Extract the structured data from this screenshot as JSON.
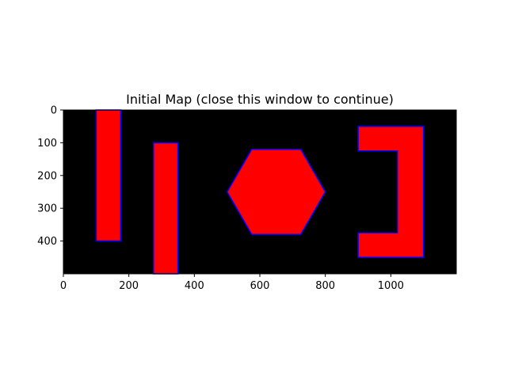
{
  "window": {
    "title": "Initial Map (close this window to continue)"
  },
  "chart_data": {
    "type": "map",
    "title": "Initial Map (close this window to continue)",
    "xlabel": "",
    "ylabel": "",
    "xlim": [
      0,
      1200
    ],
    "ylim": [
      500,
      0
    ],
    "x_ticks": [
      0,
      200,
      400,
      600,
      800,
      1000
    ],
    "y_ticks": [
      0,
      100,
      200,
      300,
      400
    ],
    "grid": false,
    "background": "#000000",
    "obstacle_fill": "#ff0000",
    "obstacle_edge": "#0000ff",
    "obstacles": [
      {
        "name": "rect-1",
        "points": [
          [
            100,
            0
          ],
          [
            175,
            0
          ],
          [
            175,
            400
          ],
          [
            100,
            400
          ]
        ]
      },
      {
        "name": "rect-2",
        "points": [
          [
            275,
            100
          ],
          [
            350,
            100
          ],
          [
            350,
            500
          ],
          [
            275,
            500
          ]
        ]
      },
      {
        "name": "hexagon",
        "points": [
          [
            575,
            120
          ],
          [
            725,
            120
          ],
          [
            800,
            250
          ],
          [
            725,
            380
          ],
          [
            575,
            380
          ],
          [
            500,
            250
          ]
        ]
      },
      {
        "name": "bracket",
        "points": [
          [
            900,
            50
          ],
          [
            1100,
            50
          ],
          [
            1100,
            450
          ],
          [
            900,
            450
          ],
          [
            900,
            375
          ],
          [
            1020,
            375
          ],
          [
            1020,
            125
          ],
          [
            900,
            125
          ]
        ]
      }
    ]
  }
}
